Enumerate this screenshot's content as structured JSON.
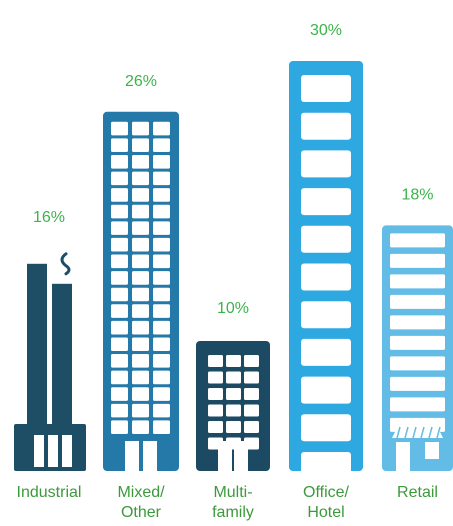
{
  "chart_data": {
    "type": "bar",
    "title": "",
    "xlabel": "",
    "ylabel": "",
    "categories": [
      "Industrial",
      "Mixed/ Other",
      "Multi- family",
      "Office/ Hotel",
      "Retail"
    ],
    "label_lines": [
      [
        "Industrial"
      ],
      [
        "Mixed/",
        "Other"
      ],
      [
        "Multi-",
        "family"
      ],
      [
        "Office/",
        "Hotel"
      ],
      [
        "Retail"
      ]
    ],
    "values": [
      16,
      26,
      10,
      30,
      18
    ],
    "value_labels": [
      "16%",
      "26%",
      "10%",
      "30%",
      "18%"
    ],
    "ylim": [
      0,
      30
    ],
    "grid": false,
    "colors": {
      "industrial": "#1d4e66",
      "mixed": "#2479a8",
      "multifamily": "#1c4a63",
      "office": "#2ea8e0",
      "retail": "#62bce6",
      "percent_text": "#3cb44b",
      "label_text": "#3c9a3c",
      "window": "#ffffff"
    },
    "icons": [
      "factory-icon",
      "office-tower-icon",
      "apartment-building-icon",
      "hotel-tower-icon",
      "storefront-icon"
    ]
  }
}
